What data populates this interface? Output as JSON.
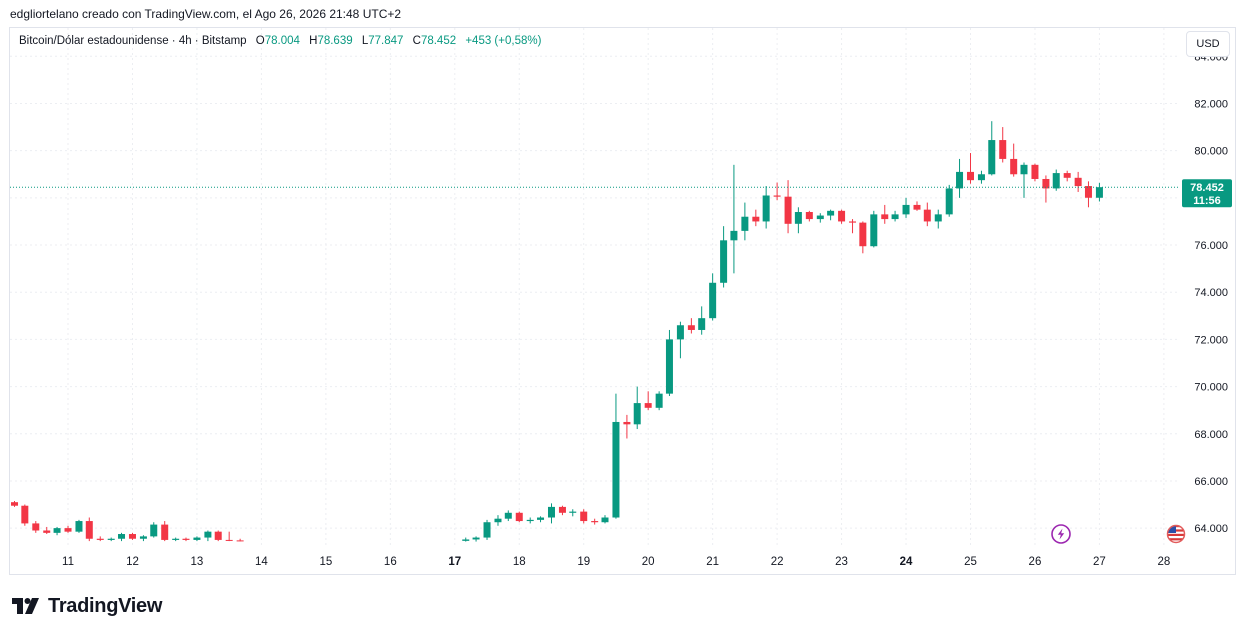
{
  "attribution": "edgliortelano creado con TradingView.com, el Ago 26, 2026 21:48 UTC+2",
  "legend": {
    "symbol": "Bitcoin/Dólar estadounidense · 4h · Bitstamp",
    "open_label": "O",
    "open": "78.004",
    "high_label": "H",
    "high": "78.639",
    "low_label": "L",
    "low": "77.847",
    "close_label": "C",
    "close": "78.452",
    "change": "+453 (+0,58%)"
  },
  "currency_button": "USD",
  "price_tag": {
    "price": "78.452",
    "countdown": "11:56"
  },
  "brand": "TradingView",
  "colors": {
    "up": "#089981",
    "down": "#f23645",
    "grid": "#eceef2",
    "text": "#131722",
    "event_icon": "#9c27b0"
  },
  "icons": {
    "event": "lightning-icon",
    "country": "us-flag-icon",
    "logo": "tradingview-logo-icon"
  },
  "chart_data": {
    "type": "candlestick",
    "interval": "4h",
    "x_ticks": [
      {
        "label": "11",
        "day": 11,
        "bold": false
      },
      {
        "label": "12",
        "day": 12,
        "bold": false
      },
      {
        "label": "13",
        "day": 13,
        "bold": false
      },
      {
        "label": "14",
        "day": 14,
        "bold": false
      },
      {
        "label": "15",
        "day": 15,
        "bold": false
      },
      {
        "label": "16",
        "day": 16,
        "bold": false
      },
      {
        "label": "17",
        "day": 17,
        "bold": true
      },
      {
        "label": "18",
        "day": 18,
        "bold": false
      },
      {
        "label": "19",
        "day": 19,
        "bold": false
      },
      {
        "label": "20",
        "day": 20,
        "bold": false
      },
      {
        "label": "21",
        "day": 21,
        "bold": false
      },
      {
        "label": "22",
        "day": 22,
        "bold": false
      },
      {
        "label": "23",
        "day": 23,
        "bold": false
      },
      {
        "label": "24",
        "day": 24,
        "bold": true
      },
      {
        "label": "25",
        "day": 25,
        "bold": false
      },
      {
        "label": "26",
        "day": 26,
        "bold": false
      },
      {
        "label": "27",
        "day": 27,
        "bold": false
      },
      {
        "label": "28",
        "day": 28,
        "bold": false
      }
    ],
    "y_ticks": [
      "84.000",
      "82.000",
      "80.000",
      "78.000",
      "76.000",
      "74.000",
      "72.000",
      "70.000",
      "68.000",
      "66.000",
      "64.000"
    ],
    "y_tick_values": [
      84000,
      82000,
      80000,
      78000,
      76000,
      74000,
      72000,
      70000,
      68000,
      66000,
      64000
    ],
    "ylim": [
      63200,
      85200
    ],
    "xlim": [
      10.1,
      28.25
    ],
    "last_price": 78452,
    "grid": true,
    "candles": [
      {
        "t": 10.17,
        "o": 65100,
        "h": 65150,
        "l": 64900,
        "c": 64950
      },
      {
        "t": 10.33,
        "o": 64950,
        "h": 65000,
        "l": 64100,
        "c": 64200
      },
      {
        "t": 10.5,
        "o": 64200,
        "h": 64300,
        "l": 63800,
        "c": 63900
      },
      {
        "t": 10.67,
        "o": 63900,
        "h": 64050,
        "l": 63750,
        "c": 63800
      },
      {
        "t": 10.83,
        "o": 63800,
        "h": 64050,
        "l": 63700,
        "c": 64000
      },
      {
        "t": 11.0,
        "o": 64000,
        "h": 64100,
        "l": 63800,
        "c": 63850
      },
      {
        "t": 11.17,
        "o": 63850,
        "h": 64350,
        "l": 63800,
        "c": 64300
      },
      {
        "t": 11.33,
        "o": 64300,
        "h": 64450,
        "l": 63450,
        "c": 63550
      },
      {
        "t": 11.5,
        "o": 63550,
        "h": 63650,
        "l": 63450,
        "c": 63500
      },
      {
        "t": 11.67,
        "o": 63500,
        "h": 63600,
        "l": 63450,
        "c": 63550
      },
      {
        "t": 11.83,
        "o": 63550,
        "h": 63800,
        "l": 63450,
        "c": 63750
      },
      {
        "t": 12.0,
        "o": 63750,
        "h": 63800,
        "l": 63500,
        "c": 63550
      },
      {
        "t": 12.17,
        "o": 63550,
        "h": 63700,
        "l": 63450,
        "c": 63650
      },
      {
        "t": 12.33,
        "o": 63650,
        "h": 64250,
        "l": 63600,
        "c": 64150
      },
      {
        "t": 12.5,
        "o": 64150,
        "h": 64300,
        "l": 63450,
        "c": 63500
      },
      {
        "t": 12.67,
        "o": 63500,
        "h": 63600,
        "l": 63450,
        "c": 63550
      },
      {
        "t": 12.83,
        "o": 63550,
        "h": 63600,
        "l": 63450,
        "c": 63500
      },
      {
        "t": 13.0,
        "o": 63500,
        "h": 63650,
        "l": 63450,
        "c": 63600
      },
      {
        "t": 13.17,
        "o": 63600,
        "h": 63900,
        "l": 63450,
        "c": 63850
      },
      {
        "t": 13.33,
        "o": 63850,
        "h": 63900,
        "l": 63450,
        "c": 63500
      },
      {
        "t": 13.5,
        "o": 63500,
        "h": 63850,
        "l": 63450,
        "c": 63480
      },
      {
        "t": 13.67,
        "o": 63480,
        "h": 63550,
        "l": 63440,
        "c": 63470
      },
      {
        "t": 17.17,
        "o": 63460,
        "h": 63600,
        "l": 63430,
        "c": 63520
      },
      {
        "t": 17.33,
        "o": 63520,
        "h": 63650,
        "l": 63430,
        "c": 63600
      },
      {
        "t": 17.5,
        "o": 63600,
        "h": 64350,
        "l": 63500,
        "c": 64250
      },
      {
        "t": 17.67,
        "o": 64250,
        "h": 64550,
        "l": 64100,
        "c": 64400
      },
      {
        "t": 17.83,
        "o": 64400,
        "h": 64750,
        "l": 64300,
        "c": 64650
      },
      {
        "t": 18.0,
        "o": 64650,
        "h": 64700,
        "l": 64250,
        "c": 64300
      },
      {
        "t": 18.17,
        "o": 64300,
        "h": 64450,
        "l": 64200,
        "c": 64350
      },
      {
        "t": 18.33,
        "o": 64350,
        "h": 64500,
        "l": 64250,
        "c": 64450
      },
      {
        "t": 18.5,
        "o": 64450,
        "h": 65050,
        "l": 64200,
        "c": 64900
      },
      {
        "t": 18.67,
        "o": 64900,
        "h": 64950,
        "l": 64550,
        "c": 64650
      },
      {
        "t": 18.83,
        "o": 64650,
        "h": 64800,
        "l": 64500,
        "c": 64700
      },
      {
        "t": 19.0,
        "o": 64700,
        "h": 64800,
        "l": 64200,
        "c": 64300
      },
      {
        "t": 19.17,
        "o": 64300,
        "h": 64400,
        "l": 64150,
        "c": 64250
      },
      {
        "t": 19.33,
        "o": 64250,
        "h": 64550,
        "l": 64200,
        "c": 64450
      },
      {
        "t": 19.5,
        "o": 64450,
        "h": 69700,
        "l": 64400,
        "c": 68500
      },
      {
        "t": 19.67,
        "o": 68500,
        "h": 68800,
        "l": 67800,
        "c": 68400
      },
      {
        "t": 19.83,
        "o": 68400,
        "h": 70000,
        "l": 68200,
        "c": 69300
      },
      {
        "t": 20.0,
        "o": 69300,
        "h": 69800,
        "l": 69000,
        "c": 69100
      },
      {
        "t": 20.17,
        "o": 69100,
        "h": 69800,
        "l": 69000,
        "c": 69700
      },
      {
        "t": 20.33,
        "o": 69700,
        "h": 72400,
        "l": 69600,
        "c": 72000
      },
      {
        "t": 20.5,
        "o": 72000,
        "h": 72750,
        "l": 71200,
        "c": 72600
      },
      {
        "t": 20.67,
        "o": 72600,
        "h": 72900,
        "l": 72250,
        "c": 72400
      },
      {
        "t": 20.83,
        "o": 72400,
        "h": 73400,
        "l": 72200,
        "c": 72900
      },
      {
        "t": 21.0,
        "o": 72900,
        "h": 74800,
        "l": 72800,
        "c": 74400
      },
      {
        "t": 21.17,
        "o": 74400,
        "h": 76800,
        "l": 74200,
        "c": 76200
      },
      {
        "t": 21.33,
        "o": 76200,
        "h": 79400,
        "l": 74800,
        "c": 76600
      },
      {
        "t": 21.5,
        "o": 76600,
        "h": 77800,
        "l": 76200,
        "c": 77200
      },
      {
        "t": 21.67,
        "o": 77200,
        "h": 77500,
        "l": 76800,
        "c": 77000
      },
      {
        "t": 21.83,
        "o": 77000,
        "h": 78500,
        "l": 76700,
        "c": 78100
      },
      {
        "t": 22.0,
        "o": 78100,
        "h": 78650,
        "l": 77900,
        "c": 78050
      },
      {
        "t": 22.17,
        "o": 78050,
        "h": 78750,
        "l": 76500,
        "c": 76900
      },
      {
        "t": 22.33,
        "o": 76900,
        "h": 77600,
        "l": 76500,
        "c": 77400
      },
      {
        "t": 22.5,
        "o": 77400,
        "h": 77450,
        "l": 77000,
        "c": 77100
      },
      {
        "t": 22.67,
        "o": 77100,
        "h": 77350,
        "l": 76950,
        "c": 77250
      },
      {
        "t": 22.83,
        "o": 77250,
        "h": 77500,
        "l": 77050,
        "c": 77450
      },
      {
        "t": 23.0,
        "o": 77450,
        "h": 77500,
        "l": 76900,
        "c": 77000
      },
      {
        "t": 23.17,
        "o": 77000,
        "h": 77100,
        "l": 76500,
        "c": 76950
      },
      {
        "t": 23.33,
        "o": 76950,
        "h": 77000,
        "l": 75650,
        "c": 75950
      },
      {
        "t": 23.5,
        "o": 75950,
        "h": 77450,
        "l": 75900,
        "c": 77300
      },
      {
        "t": 23.67,
        "o": 77300,
        "h": 77700,
        "l": 76900,
        "c": 77100
      },
      {
        "t": 23.83,
        "o": 77100,
        "h": 77450,
        "l": 77000,
        "c": 77300
      },
      {
        "t": 24.0,
        "o": 77300,
        "h": 78000,
        "l": 77150,
        "c": 77700
      },
      {
        "t": 24.17,
        "o": 77700,
        "h": 77850,
        "l": 77450,
        "c": 77500
      },
      {
        "t": 24.33,
        "o": 77500,
        "h": 77800,
        "l": 76800,
        "c": 77000
      },
      {
        "t": 24.5,
        "o": 77000,
        "h": 77500,
        "l": 76700,
        "c": 77300
      },
      {
        "t": 24.67,
        "o": 77300,
        "h": 78550,
        "l": 77200,
        "c": 78400
      },
      {
        "t": 24.83,
        "o": 78400,
        "h": 79650,
        "l": 78000,
        "c": 79100
      },
      {
        "t": 25.0,
        "o": 79100,
        "h": 79900,
        "l": 78600,
        "c": 78750
      },
      {
        "t": 25.17,
        "o": 78750,
        "h": 79150,
        "l": 78600,
        "c": 79000
      },
      {
        "t": 25.33,
        "o": 79000,
        "h": 81250,
        "l": 78950,
        "c": 80450
      },
      {
        "t": 25.5,
        "o": 80450,
        "h": 81000,
        "l": 79500,
        "c": 79650
      },
      {
        "t": 25.67,
        "o": 79650,
        "h": 80300,
        "l": 78900,
        "c": 79000
      },
      {
        "t": 25.83,
        "o": 79000,
        "h": 79500,
        "l": 78000,
        "c": 79400
      },
      {
        "t": 26.0,
        "o": 79400,
        "h": 79450,
        "l": 78700,
        "c": 78800
      },
      {
        "t": 26.17,
        "o": 78800,
        "h": 78950,
        "l": 77800,
        "c": 78400
      },
      {
        "t": 26.33,
        "o": 78400,
        "h": 79200,
        "l": 78300,
        "c": 79050
      },
      {
        "t": 26.5,
        "o": 79050,
        "h": 79150,
        "l": 78700,
        "c": 78850
      },
      {
        "t": 26.67,
        "o": 78850,
        "h": 79100,
        "l": 78250,
        "c": 78500
      },
      {
        "t": 26.83,
        "o": 78500,
        "h": 78700,
        "l": 77600,
        "c": 78004
      },
      {
        "t": 27.0,
        "o": 78004,
        "h": 78639,
        "l": 77847,
        "c": 78452
      }
    ]
  }
}
